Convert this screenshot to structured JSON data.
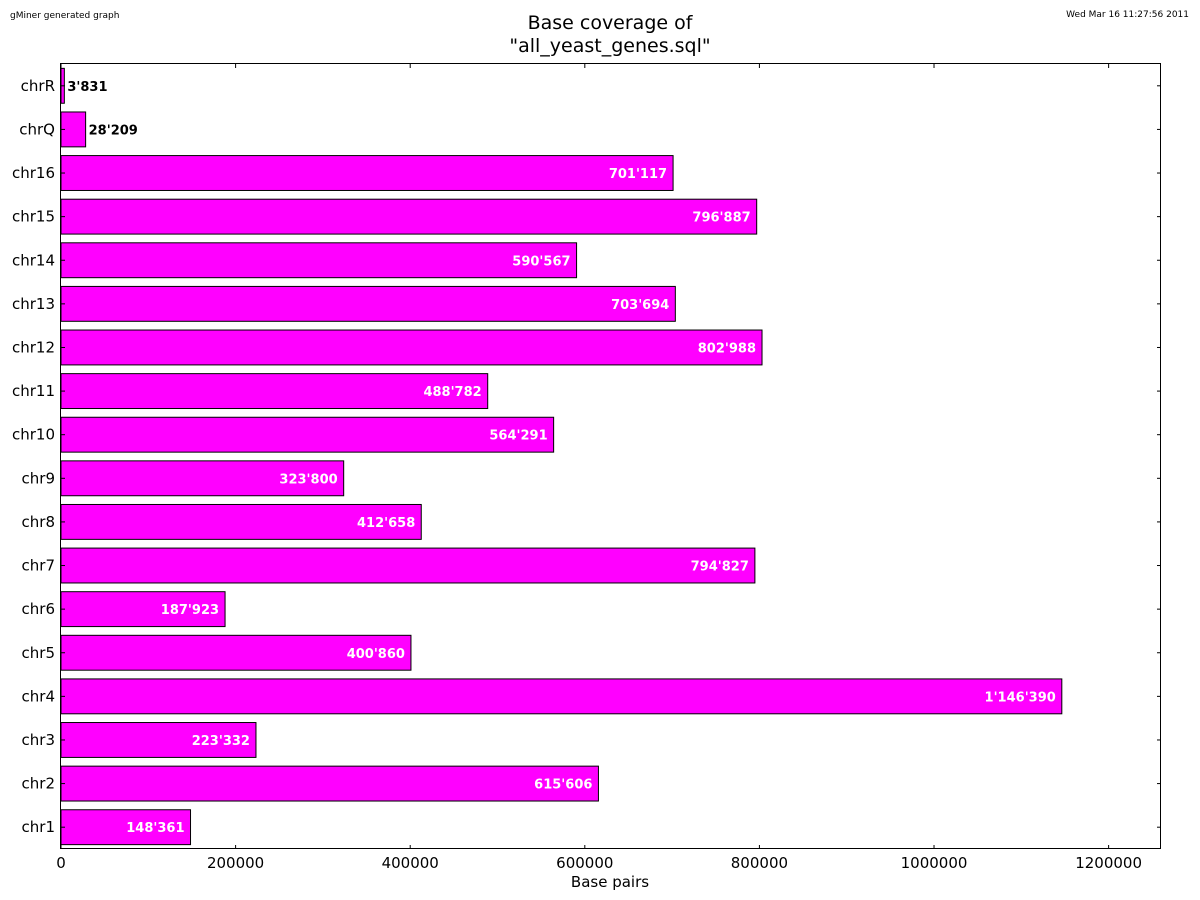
{
  "header": {
    "left_note": "gMiner generated graph",
    "right_note": "Wed Mar 16 11:27:56 2011"
  },
  "chart_data": {
    "type": "bar",
    "orientation": "horizontal",
    "title": "Base coverage of\n\"all_yeast_genes.sql\"",
    "title_lines": [
      "Base coverage of",
      "\"all_yeast_genes.sql\""
    ],
    "xlabel": "Base pairs",
    "ylabel": "",
    "xlim": [
      0,
      1260000
    ],
    "xticks": [
      0,
      200000,
      400000,
      600000,
      800000,
      1000000,
      1200000
    ],
    "xtick_labels": [
      "0",
      "200000",
      "400000",
      "600000",
      "800000",
      "1000000",
      "1200000"
    ],
    "grid": false,
    "bar_color": "#ff00ff",
    "edge_color": "#000000",
    "categories": [
      "chr1",
      "chr2",
      "chr3",
      "chr4",
      "chr5",
      "chr6",
      "chr7",
      "chr8",
      "chr9",
      "chr10",
      "chr11",
      "chr12",
      "chr13",
      "chr14",
      "chr15",
      "chr16",
      "chrQ",
      "chrR"
    ],
    "values": [
      148361,
      615606,
      223332,
      1146390,
      400860,
      187923,
      794827,
      412658,
      323800,
      564291,
      488782,
      802988,
      703694,
      590567,
      796887,
      701117,
      28209,
      3831
    ],
    "value_labels": [
      "148'361",
      "615'606",
      "223'332",
      "1'146'390",
      "400'860",
      "187'923",
      "794'827",
      "412'658",
      "323'800",
      "564'291",
      "488'782",
      "802'988",
      "703'694",
      "590'567",
      "796'887",
      "701'117",
      "28'209",
      "3'831"
    ]
  }
}
